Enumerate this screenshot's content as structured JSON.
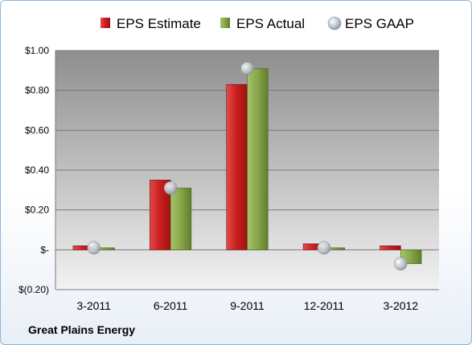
{
  "company": "Great Plains Energy",
  "chart_data": {
    "type": "bar",
    "categories": [
      "3-2011",
      "6-2011",
      "9-2011",
      "12-2011",
      "3-2012"
    ],
    "series": [
      {
        "name": "EPS Estimate",
        "mark": "bar",
        "color": "#cc2222",
        "values": [
          0.02,
          0.35,
          0.83,
          0.03,
          0.02
        ]
      },
      {
        "name": "EPS Actual",
        "mark": "bar",
        "color": "#8cab4c",
        "values": [
          0.01,
          0.31,
          0.91,
          0.01,
          -0.07
        ]
      },
      {
        "name": "EPS GAAP",
        "mark": "point",
        "color": "#b5bdc6",
        "values": [
          0.01,
          0.31,
          0.91,
          0.01,
          -0.07
        ]
      }
    ],
    "y_ticks": [
      {
        "value": 1.0,
        "label": "$1.00"
      },
      {
        "value": 0.8,
        "label": "$0.80"
      },
      {
        "value": 0.6,
        "label": "$0.60"
      },
      {
        "value": 0.4,
        "label": "$0.40"
      },
      {
        "value": 0.2,
        "label": "$0.20"
      },
      {
        "value": 0.0,
        "label": "$-"
      },
      {
        "value": -0.2,
        "label": "$(0.20)"
      }
    ],
    "ylim": [
      -0.2,
      1.0
    ],
    "grid": true,
    "legend_position": "top"
  }
}
